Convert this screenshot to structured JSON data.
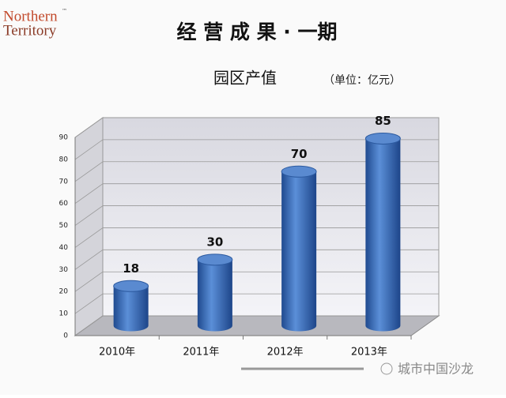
{
  "logo": {
    "line1": "Northern",
    "line2": "Territory",
    "mark": "™"
  },
  "title": "经 营 成 果 · 一期",
  "watermark": "城市中国沙龙",
  "chart_data": {
    "type": "bar",
    "title": "园区产值",
    "subtitle": "（单位：亿元）",
    "categories": [
      "2010年",
      "2011年",
      "2012年",
      "2013年"
    ],
    "values": [
      18,
      30,
      70,
      85
    ],
    "color": "#3366b8",
    "ylim": [
      0,
      90
    ],
    "yticks": [
      0,
      10,
      20,
      30,
      40,
      50,
      60,
      70,
      80,
      90
    ],
    "grid": true
  }
}
